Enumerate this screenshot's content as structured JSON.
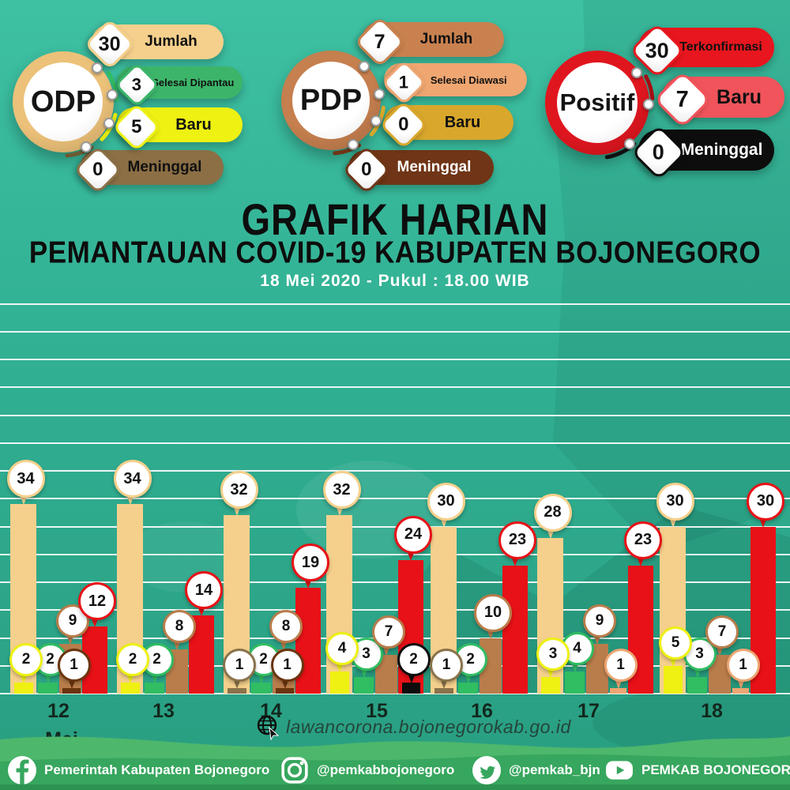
{
  "poster": {
    "title_line1": "GRAFIK HARIAN",
    "title_line2": "PEMANTAUAN COVID-19 KABUPATEN BOJONEGORO",
    "subtitle": "18 Mei 2020 - Pukul : 18.00 WIB",
    "website": "lawancorona.bojonegorokab.go.id",
    "x_axis_month": "Mei"
  },
  "panels": [
    {
      "id": "odp",
      "circle_label": "ODP",
      "ring_color": "#ecc179",
      "rows": [
        {
          "value": "30",
          "label": "Jumlah",
          "pill_color": "#f5d08c",
          "text_color": "#111111"
        },
        {
          "value": "3",
          "label": "Selesai Dipantau",
          "pill_color": "#3cb56a",
          "text_color": "#111111"
        },
        {
          "value": "5",
          "label": "Baru",
          "pill_color": "#eef112",
          "text_color": "#111111"
        },
        {
          "value": "0",
          "label": "Meninggal",
          "pill_color": "#8c6f45",
          "text_color": "#111111"
        }
      ]
    },
    {
      "id": "pdp",
      "circle_label": "PDP",
      "ring_color": "#c67f4e",
      "rows": [
        {
          "value": "7",
          "label": "Jumlah",
          "pill_color": "#c9814f",
          "text_color": "#111111"
        },
        {
          "value": "1",
          "label": "Selesai Diawasi",
          "pill_color": "#efa671",
          "text_color": "#111111"
        },
        {
          "value": "0",
          "label": "Baru",
          "pill_color": "#d9a72c",
          "text_color": "#111111"
        },
        {
          "value": "0",
          "label": "Meninggal",
          "pill_color": "#6f3516",
          "text_color": "#ffffff"
        }
      ]
    },
    {
      "id": "positif",
      "circle_label": "Positif",
      "ring_color": "#e0161f",
      "rows": [
        {
          "value": "30",
          "label": "Terkonfirmasi",
          "pill_color": "#e8161e",
          "text_color": "#111111"
        },
        {
          "value": "7",
          "label": "Baru",
          "pill_color": "#f1545b",
          "text_color": "#111111"
        },
        {
          "value": "0",
          "label": "Meninggal",
          "pill_color": "#0d0d0d",
          "text_color": "#ffffff"
        }
      ]
    }
  ],
  "chart_data": {
    "type": "bar",
    "title": "GRAFIK HARIAN PEMANTAUAN COVID-19 KABUPATEN BOJONEGORO",
    "categories": [
      "12",
      "13",
      "14",
      "15",
      "16",
      "17",
      "18"
    ],
    "x_unit_label": "Mei",
    "ylim": [
      0,
      70
    ],
    "gridline_step": 5,
    "grid": true,
    "legend_position": "none",
    "series": [
      {
        "name": "ODP Jumlah",
        "color": "#f5d08c",
        "values": [
          34,
          34,
          32,
          32,
          30,
          28,
          30
        ]
      },
      {
        "name": "ODP Baru",
        "color": "#eef112",
        "values": [
          2,
          2,
          0,
          4,
          0,
          3,
          5
        ]
      },
      {
        "name": "ODP Meninggal",
        "color": "#8a734a",
        "values": [
          0,
          0,
          1,
          0,
          1,
          0,
          0
        ]
      },
      {
        "name": "ODP Selesai Dipantau",
        "color": "#31bd62",
        "values": [
          2,
          2,
          2,
          3,
          2,
          4,
          3
        ]
      },
      {
        "name": "PDP Jumlah",
        "color": "#b97d4b",
        "values": [
          9,
          8,
          8,
          7,
          10,
          9,
          7
        ]
      },
      {
        "name": "PDP Meninggal",
        "color": "#6b350f",
        "values": [
          1,
          0,
          1,
          0,
          0,
          0,
          0
        ]
      },
      {
        "name": "PDP Selesai Diawasi",
        "color": "#eda673",
        "values": [
          0,
          0,
          0,
          0,
          0,
          1,
          1
        ]
      },
      {
        "name": "Positif Terkonfirmasi",
        "color": "#e81117",
        "values": [
          12,
          14,
          19,
          24,
          23,
          23,
          30
        ]
      },
      {
        "name": "Positif Meninggal",
        "color": "#0d0d0d",
        "values": [
          0,
          0,
          0,
          2,
          0,
          0,
          0
        ]
      }
    ]
  },
  "footer": {
    "items": [
      {
        "network": "facebook",
        "handle": "Pemerintah Kabupaten Bojonegoro"
      },
      {
        "network": "instagram",
        "handle": "@pemkabbojonegoro"
      },
      {
        "network": "twitter",
        "handle": "@pemkab_bjn"
      },
      {
        "network": "youtube",
        "handle": "PEMKAB BOJONEGORO"
      }
    ]
  }
}
